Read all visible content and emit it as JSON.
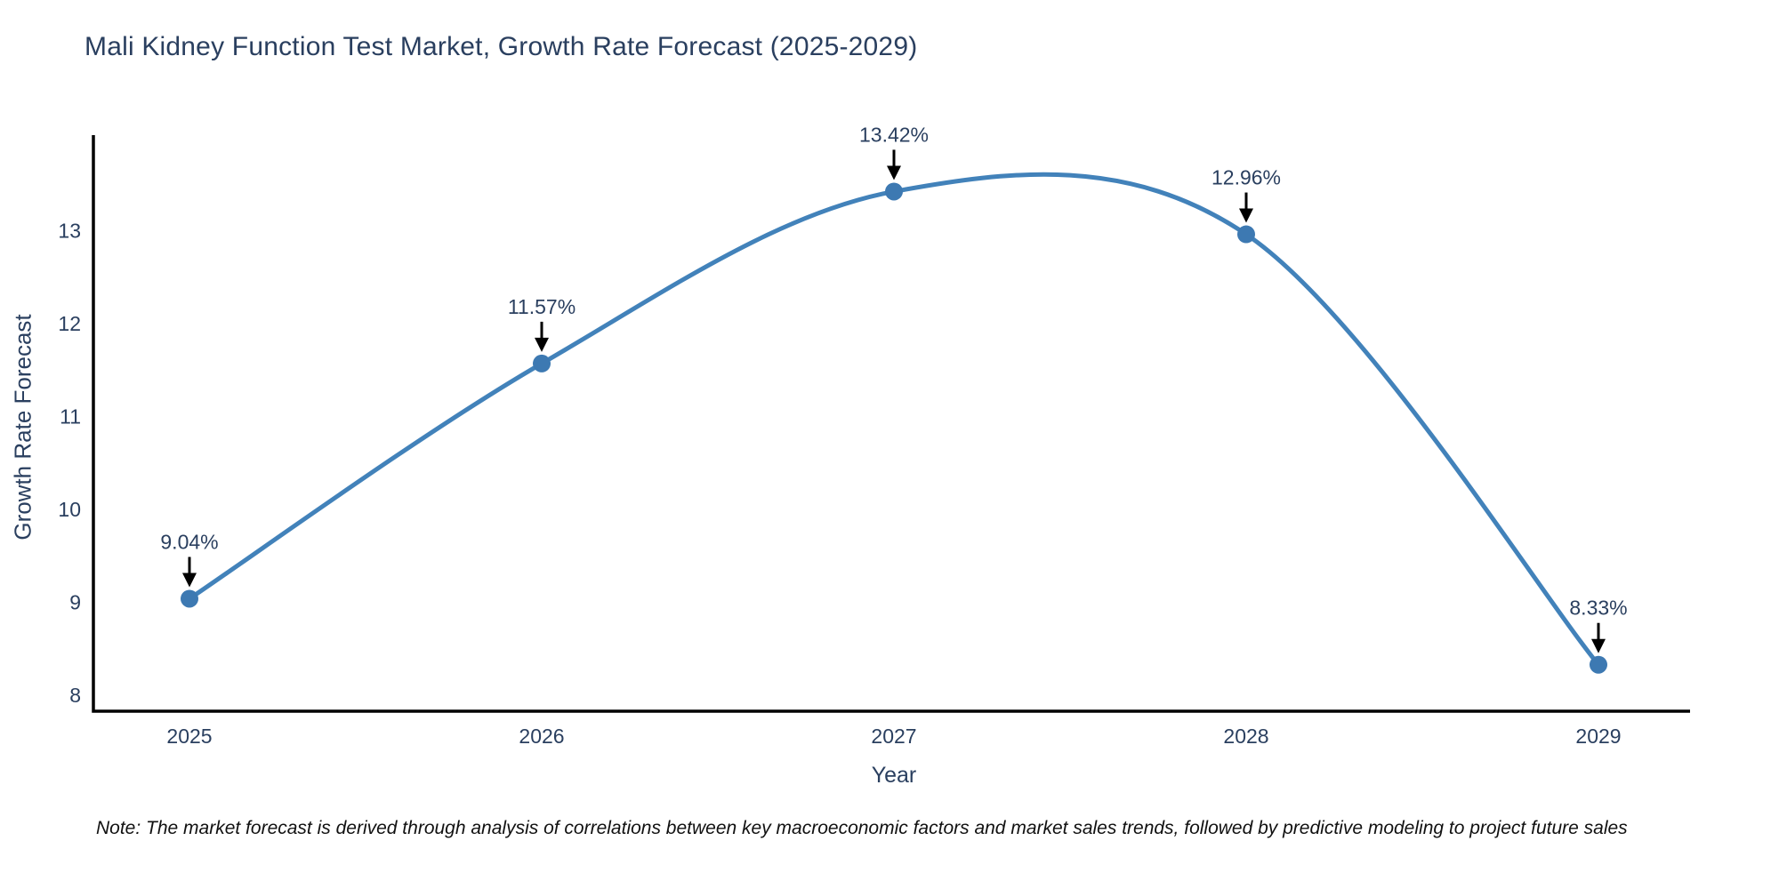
{
  "title": "Mali Kidney Function Test Market, Growth Rate Forecast (2025-2029)",
  "note": "Note: The market forecast is derived through analysis of correlations between key macroeconomic factors and market sales trends, followed by predictive modeling to project future sales",
  "chart_data": {
    "type": "line",
    "line_shape": "spline",
    "grid": false,
    "title": "Mali Kidney Function Test Market, Growth Rate Forecast (2025-2029)",
    "xlabel": "Year",
    "ylabel": "Growth Rate Forecast",
    "x": [
      2025,
      2026,
      2027,
      2028,
      2029
    ],
    "series": [
      {
        "name": "Growth Rate Forecast",
        "values": [
          9.04,
          11.57,
          13.42,
          12.96,
          8.33
        ]
      }
    ],
    "point_labels": [
      "9.04%",
      "11.57%",
      "13.42%",
      "12.96%",
      "8.33%"
    ],
    "yticks": [
      8,
      9,
      10,
      11,
      12,
      13
    ],
    "ylim": [
      7.83,
      14.03
    ],
    "legend_position": "none",
    "colors": {
      "line": "#4282ba",
      "marker": "#3d79b2",
      "axis": "#000000",
      "tick_text": "#2a3f5f",
      "annotation_text": "#2a3f5f",
      "arrow": "#000000"
    }
  }
}
